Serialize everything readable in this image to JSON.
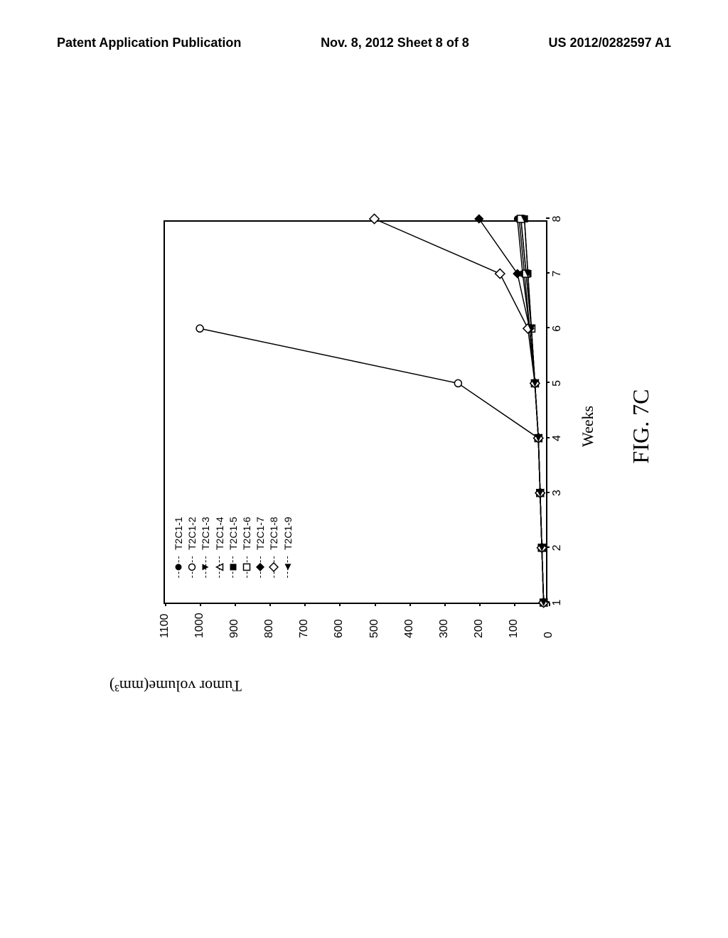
{
  "header": {
    "left": "Patent Application Publication",
    "center": "Nov. 8, 2012  Sheet 8 of 8",
    "right": "US 2012/0282597 A1"
  },
  "chart": {
    "type": "line",
    "ylabel": "Tumor volume(mm³)",
    "xlabel": "Weeks",
    "figure_caption": "FIG. 7C",
    "ylim": [
      0,
      1100
    ],
    "ytick_step": 100,
    "yticks": [
      0,
      100,
      200,
      300,
      400,
      500,
      600,
      700,
      800,
      900,
      1000,
      1100
    ],
    "xlim": [
      1,
      8
    ],
    "xticks": [
      1,
      2,
      3,
      4,
      5,
      6,
      7,
      8
    ],
    "background_color": "#ffffff",
    "axis_color": "#000000",
    "line_color": "#000000",
    "label_fontsize": 22,
    "tick_fontsize": 16,
    "caption_fontsize": 32,
    "series": [
      {
        "name": "T2C1-1",
        "marker": "circle-filled",
        "data": [
          [
            1,
            15
          ],
          [
            2,
            20
          ],
          [
            3,
            25
          ],
          [
            4,
            30
          ],
          [
            5,
            40
          ],
          [
            6,
            55
          ],
          [
            7,
            75
          ],
          [
            8,
            90
          ]
        ]
      },
      {
        "name": "T2C1-2",
        "marker": "circle-open",
        "data": [
          [
            1,
            15
          ],
          [
            2,
            20
          ],
          [
            3,
            25
          ],
          [
            4,
            30
          ],
          [
            5,
            260
          ],
          [
            6,
            1000
          ]
        ]
      },
      {
        "name": "T2C1-3",
        "marker": "triangle-down-filled",
        "data": [
          [
            1,
            15
          ],
          [
            2,
            20
          ],
          [
            3,
            25
          ],
          [
            4,
            30
          ],
          [
            5,
            40
          ],
          [
            6,
            50
          ],
          [
            7,
            65
          ],
          [
            8,
            80
          ]
        ]
      },
      {
        "name": "T2C1-4",
        "marker": "triangle-up-open",
        "data": [
          [
            1,
            15
          ],
          [
            2,
            20
          ],
          [
            3,
            25
          ],
          [
            4,
            30
          ],
          [
            5,
            40
          ],
          [
            6,
            55
          ],
          [
            7,
            70
          ],
          [
            8,
            85
          ]
        ]
      },
      {
        "name": "T2C1-5",
        "marker": "square-filled",
        "data": [
          [
            1,
            15
          ],
          [
            2,
            20
          ],
          [
            3,
            25
          ],
          [
            4,
            30
          ],
          [
            5,
            40
          ],
          [
            6,
            50
          ],
          [
            7,
            60
          ],
          [
            8,
            70
          ]
        ]
      },
      {
        "name": "T2C1-6",
        "marker": "square-open",
        "data": [
          [
            1,
            15
          ],
          [
            2,
            20
          ],
          [
            3,
            25
          ],
          [
            4,
            30
          ],
          [
            5,
            40
          ],
          [
            6,
            50
          ],
          [
            7,
            65
          ],
          [
            8,
            80
          ]
        ]
      },
      {
        "name": "T2C1-7",
        "marker": "diamond-filled",
        "data": [
          [
            1,
            15
          ],
          [
            2,
            20
          ],
          [
            3,
            25
          ],
          [
            4,
            30
          ],
          [
            5,
            40
          ],
          [
            6,
            55
          ],
          [
            7,
            90
          ],
          [
            8,
            200
          ]
        ]
      },
      {
        "name": "T2C1-8",
        "marker": "diamond-open",
        "data": [
          [
            1,
            15
          ],
          [
            2,
            20
          ],
          [
            3,
            25
          ],
          [
            4,
            30
          ],
          [
            5,
            40
          ],
          [
            6,
            60
          ],
          [
            7,
            140
          ],
          [
            8,
            500
          ]
        ]
      },
      {
        "name": "T2C1-9",
        "marker": "triangle-left-filled",
        "data": [
          [
            1,
            15
          ],
          [
            2,
            20
          ],
          [
            3,
            25
          ],
          [
            4,
            30
          ],
          [
            5,
            40
          ],
          [
            6,
            50
          ],
          [
            7,
            60
          ],
          [
            8,
            70
          ]
        ]
      }
    ]
  }
}
